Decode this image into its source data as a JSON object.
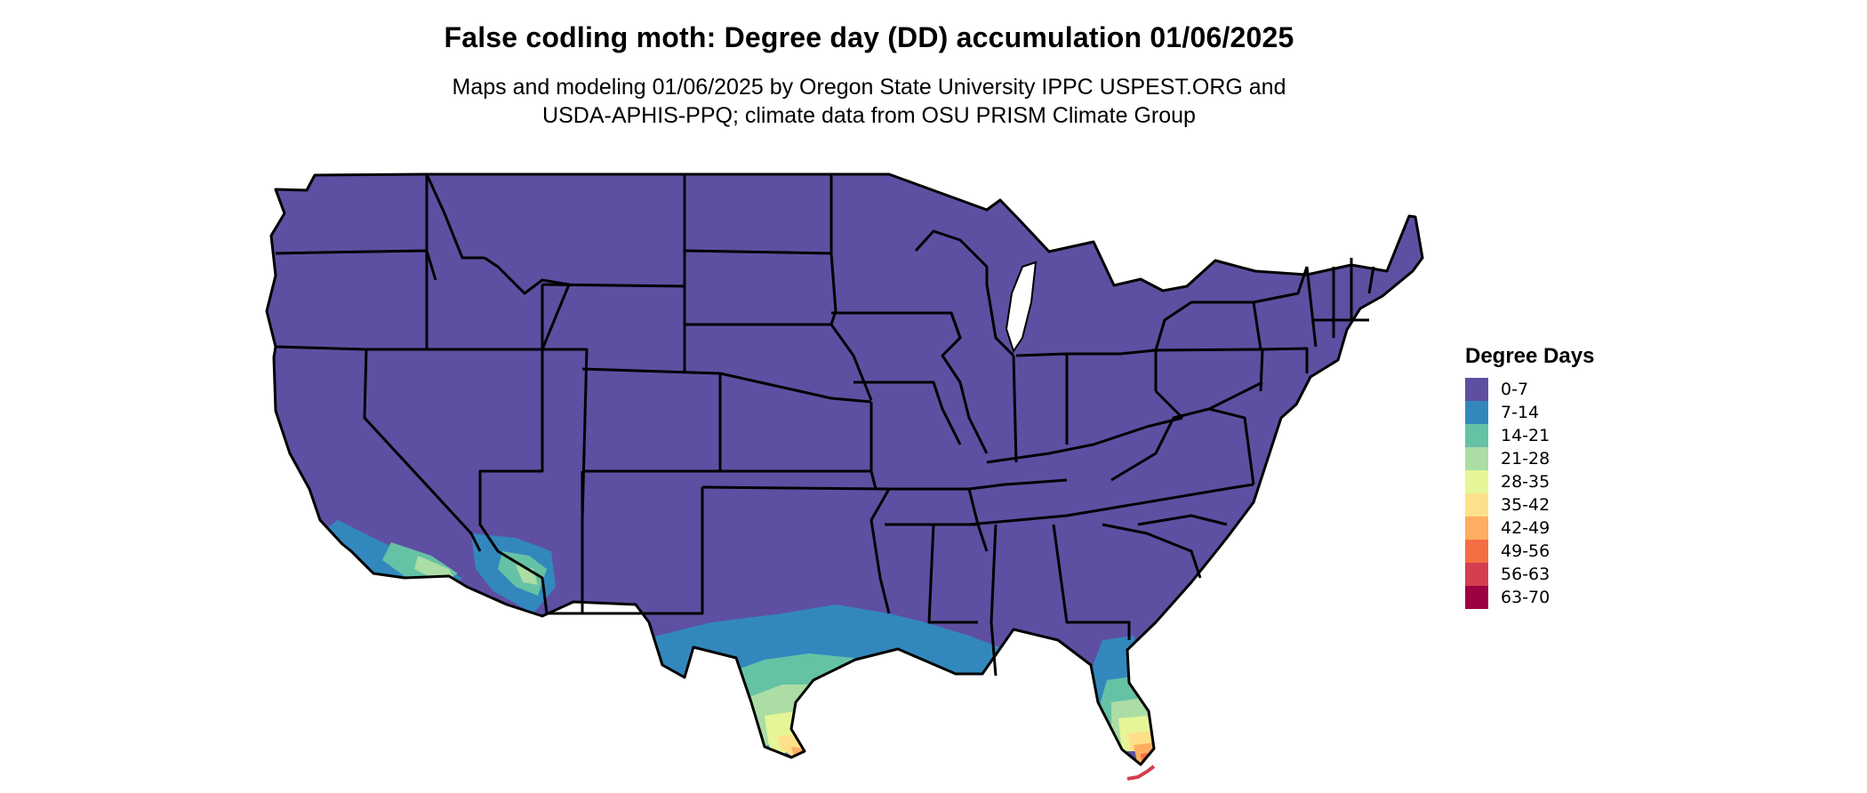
{
  "title": "False codling moth: Degree day (DD) accumulation 01/06/2025",
  "subtitle_line1": "Maps and modeling 01/06/2025 by Oregon State University IPPC USPEST.ORG and",
  "subtitle_line2": "USDA-APHIS-PPQ; climate data from OSU PRISM Climate Group",
  "legend": {
    "title": "Degree Days",
    "items": [
      {
        "label": "0-7",
        "color": "#5e4fa2"
      },
      {
        "label": "7-14",
        "color": "#3288bd"
      },
      {
        "label": "14-21",
        "color": "#66c2a5"
      },
      {
        "label": "21-28",
        "color": "#abdda4"
      },
      {
        "label": "28-35",
        "color": "#e6f598"
      },
      {
        "label": "35-42",
        "color": "#fee08b"
      },
      {
        "label": "42-49",
        "color": "#fdae61"
      },
      {
        "label": "49-56",
        "color": "#f46d43"
      },
      {
        "label": "56-63",
        "color": "#d53e4f"
      },
      {
        "label": "63-70",
        "color": "#9e0142"
      }
    ]
  },
  "map": {
    "region": "contiguous United States",
    "base_color": "#5e4fa2",
    "border_color": "#000000"
  }
}
